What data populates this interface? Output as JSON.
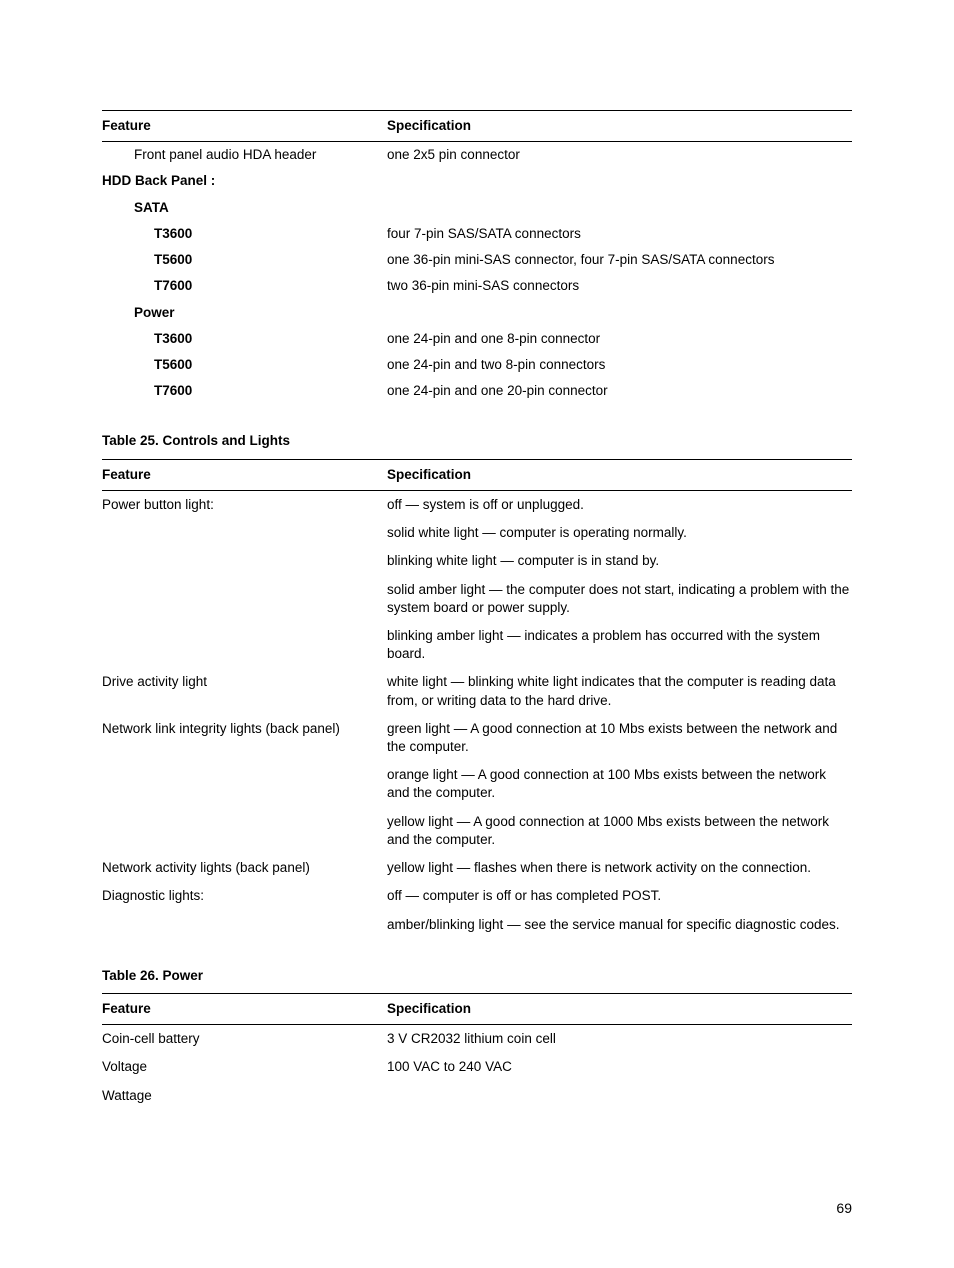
{
  "text_color": "#000000",
  "background_color": "#ffffff",
  "font_family": "Arial, Helvetica, sans-serif",
  "base_font_size_pt": 10,
  "page_number": "69",
  "table_top": {
    "header_feature": "Feature",
    "header_spec": "Specification",
    "rows": [
      {
        "feature": "Front panel audio HDA header",
        "indent": 1,
        "bold": false,
        "spec": "one 2x5 pin connector"
      },
      {
        "feature": "HDD Back Panel :",
        "indent": 0,
        "bold": true,
        "spec": ""
      },
      {
        "feature": "SATA",
        "indent": 1,
        "bold": true,
        "spec": ""
      },
      {
        "feature": "T3600",
        "indent": 2,
        "bold": true,
        "spec": "four 7-pin SAS/SATA connectors"
      },
      {
        "feature": "T5600",
        "indent": 2,
        "bold": true,
        "spec": "one 36-pin mini-SAS connector, four 7-pin SAS/SATA connectors"
      },
      {
        "feature": "T7600",
        "indent": 2,
        "bold": true,
        "spec": "two 36-pin mini-SAS connectors"
      },
      {
        "feature": "Power",
        "indent": 1,
        "bold": true,
        "spec": ""
      },
      {
        "feature": "T3600",
        "indent": 2,
        "bold": true,
        "spec": "one 24-pin and one 8-pin connector"
      },
      {
        "feature": "T5600",
        "indent": 2,
        "bold": true,
        "spec": "one 24-pin and two 8-pin connectors"
      },
      {
        "feature": "T7600",
        "indent": 2,
        "bold": true,
        "spec": "one 24-pin and one 20-pin connector"
      }
    ]
  },
  "table25": {
    "caption": "Table 25. Controls and Lights",
    "header_feature": "Feature",
    "header_spec": "Specification",
    "rows": [
      {
        "feature": "Power button light:",
        "spec": "off — system is off or unplugged."
      },
      {
        "feature": "",
        "spec": "solid white light — computer is operating normally."
      },
      {
        "feature": "",
        "spec": "blinking white light — computer is in stand by."
      },
      {
        "feature": "",
        "spec": "solid amber light — the computer does not start, indicating a problem with the system board or power supply."
      },
      {
        "feature": "",
        "spec": "blinking amber light — indicates a problem has occurred with the system board."
      },
      {
        "feature": "Drive activity light",
        "spec": "white light — blinking white light indicates that the computer is reading data from, or writing data to the hard drive."
      },
      {
        "feature": "Network link integrity lights (back panel)",
        "spec": "green light — A good connection at 10 Mbs exists between the network and the computer."
      },
      {
        "feature": "",
        "spec": "orange light — A good connection at 100 Mbs exists between the network and the computer."
      },
      {
        "feature": "",
        "spec": "yellow light — A good connection at 1000 Mbs exists between the network and the computer."
      },
      {
        "feature": "Network activity lights (back panel)",
        "spec": "yellow light — flashes when there is network activity on the connection."
      },
      {
        "feature": "Diagnostic lights:",
        "spec": "off — computer is off or has completed POST."
      },
      {
        "feature": "",
        "spec": "amber/blinking light — see the service manual for specific diagnostic codes."
      }
    ]
  },
  "table26": {
    "caption": "Table 26. Power",
    "header_feature": "Feature",
    "header_spec": "Specification",
    "rows": [
      {
        "feature": "Coin-cell battery",
        "spec": "3 V CR2032 lithium coin cell"
      },
      {
        "feature": "Voltage",
        "spec": "100 VAC to 240 VAC"
      },
      {
        "feature": "Wattage",
        "spec": ""
      }
    ]
  }
}
